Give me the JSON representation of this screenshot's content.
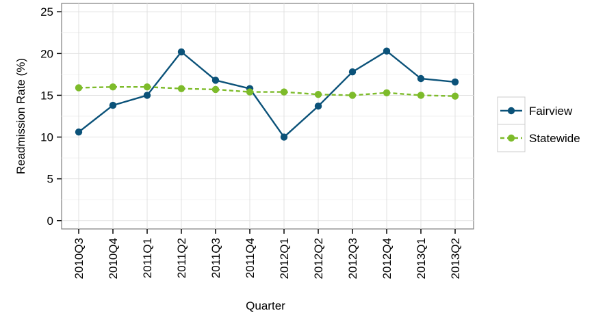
{
  "chart_data": {
    "type": "line",
    "title": "",
    "xlabel": "Quarter",
    "ylabel": "Readmission Rate (%)",
    "categories": [
      "2010Q3",
      "2010Q4",
      "2011Q1",
      "2011Q2",
      "2011Q3",
      "2011Q4",
      "2012Q1",
      "2012Q2",
      "2012Q3",
      "2012Q4",
      "2013Q1",
      "2013Q2"
    ],
    "ylim": [
      -1,
      26
    ],
    "yticks": [
      0,
      5,
      10,
      15,
      20,
      25
    ],
    "grid": true,
    "legend_position": "right",
    "series": [
      {
        "name": "Fairview",
        "color": "#0b5279",
        "line_style": "solid",
        "values": [
          10.6,
          13.8,
          15.0,
          20.2,
          16.8,
          15.8,
          10.0,
          13.7,
          17.8,
          20.3,
          17.0,
          16.6
        ]
      },
      {
        "name": "Statewide",
        "color": "#7dbb2a",
        "line_style": "dashed",
        "values": [
          15.9,
          16.0,
          16.0,
          15.8,
          15.7,
          15.4,
          15.4,
          15.1,
          15.0,
          15.3,
          15.0,
          14.9
        ]
      }
    ]
  }
}
